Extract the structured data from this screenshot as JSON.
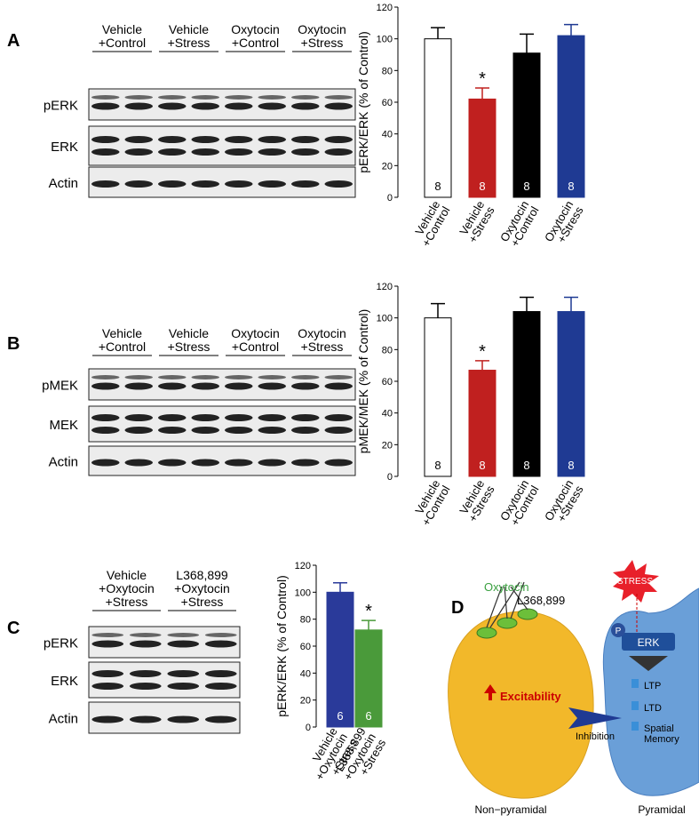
{
  "chart_data": [
    {
      "type": "bar",
      "ylabel": "pERK/ERK (% of Control)",
      "categories": [
        "Vehicle +Control",
        "Vehicle +Stress",
        "Oxytocin +Control",
        "Oxytocin +Stress"
      ],
      "values": [
        100,
        62,
        91,
        102
      ],
      "errors": [
        7,
        7,
        12,
        7
      ],
      "n": [
        8,
        8,
        8,
        8
      ],
      "significance": [
        null,
        "*",
        null,
        null
      ],
      "colors": [
        "#ffffff",
        "#c0201f",
        "#000000",
        "#1f3a93"
      ],
      "ylim": [
        0,
        120
      ],
      "yticks": [
        0,
        20,
        40,
        60,
        80,
        100,
        120
      ]
    },
    {
      "type": "bar",
      "ylabel": "pMEK/MEK (% of Control)",
      "categories": [
        "Vehicle +Control",
        "Vehicle +Stress",
        "Oxytocin +Control",
        "Oxytocin +Stress"
      ],
      "values": [
        100,
        67,
        104,
        104
      ],
      "errors": [
        9,
        6,
        9,
        9
      ],
      "n": [
        8,
        8,
        8,
        8
      ],
      "significance": [
        null,
        "*",
        null,
        null
      ],
      "colors": [
        "#ffffff",
        "#c0201f",
        "#000000",
        "#1f3a93"
      ],
      "ylim": [
        0,
        120
      ],
      "yticks": [
        0,
        20,
        40,
        60,
        80,
        100,
        120
      ]
    },
    {
      "type": "bar",
      "ylabel": "pERK/ERK (% of Control)",
      "categories": [
        "Vehicle +Oxytocin +Stress",
        "L368,899 +Oxytocin +Stress"
      ],
      "values": [
        100,
        72
      ],
      "errors": [
        7,
        7
      ],
      "n": [
        6,
        6
      ],
      "significance": [
        null,
        "*"
      ],
      "colors": [
        "#2a3a9a",
        "#4a9a3a"
      ],
      "ylim": [
        0,
        120
      ],
      "yticks": [
        0,
        20,
        40,
        60,
        80,
        100,
        120
      ]
    }
  ],
  "blots": [
    {
      "panel": "A",
      "groups": [
        "Vehicle +Control",
        "Vehicle +Stress",
        "Oxytocin +Control",
        "Oxytocin +Stress"
      ],
      "rows": [
        "pERK",
        "ERK",
        "Actin"
      ]
    },
    {
      "panel": "B",
      "groups": [
        "Vehicle +Control",
        "Vehicle +Stress",
        "Oxytocin +Control",
        "Oxytocin +Stress"
      ],
      "rows": [
        "pMEK",
        "MEK",
        "Actin"
      ]
    },
    {
      "panel": "C",
      "groups": [
        "Vehicle +Oxytocin +Stress",
        "L368,899 +Oxytocin +Stress"
      ],
      "rows": [
        "pERK",
        "ERK",
        "Actin"
      ]
    }
  ],
  "diagram": {
    "panel": "D",
    "ligands": [
      "Oxytocin",
      "L368,899"
    ],
    "stress": "STRESS",
    "phospho": "P",
    "kinase": "ERK",
    "effect": "Excitability",
    "arrow": "Inhibition",
    "outcomes": [
      "LTP",
      "LTD",
      "Spatial Memory"
    ],
    "cells": [
      "Non−pyramidal",
      "Pyramidal"
    ]
  }
}
